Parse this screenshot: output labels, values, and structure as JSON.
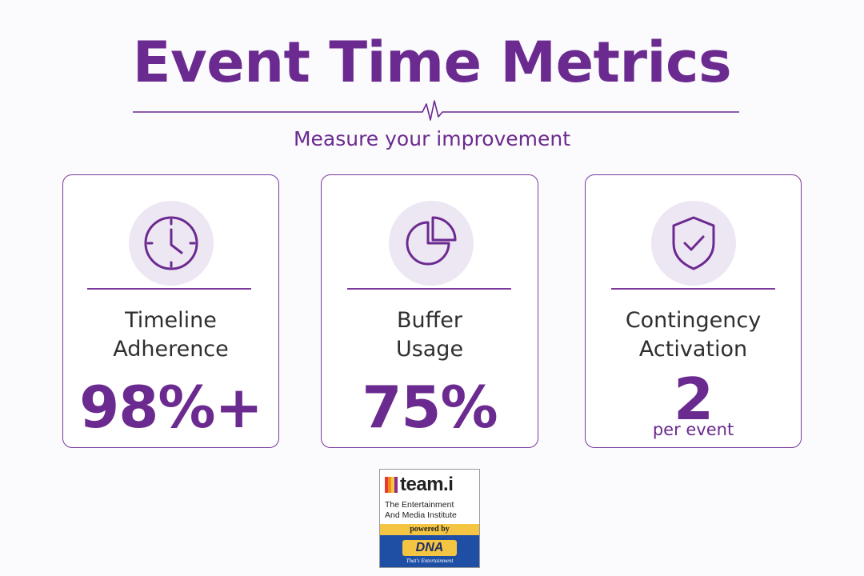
{
  "header": {
    "title": "Event Time Metrics",
    "subtitle": "Measure your improvement"
  },
  "colors": {
    "accent": "#6b2a8f",
    "card_border": "#7b3a9c",
    "icon_bg": "#ede6f3",
    "label_text": "#2f2f2f"
  },
  "cards": [
    {
      "icon": "clock-icon",
      "label_line1": "Timeline",
      "label_line2": "Adherence",
      "value": "98%+",
      "sub": ""
    },
    {
      "icon": "pie-chart-icon",
      "label_line1": "Buffer",
      "label_line2": "Usage",
      "value": "75%",
      "sub": ""
    },
    {
      "icon": "shield-check-icon",
      "label_line1": "Contingency",
      "label_line2": "Activation",
      "value": "2",
      "sub": "per event"
    }
  ],
  "logo": {
    "brand": "team.i",
    "line1": "The Entertainment",
    "line2": "And Media Institute",
    "powered": "powered by",
    "dna": "DNA",
    "tagline": "That's Entertainment"
  }
}
